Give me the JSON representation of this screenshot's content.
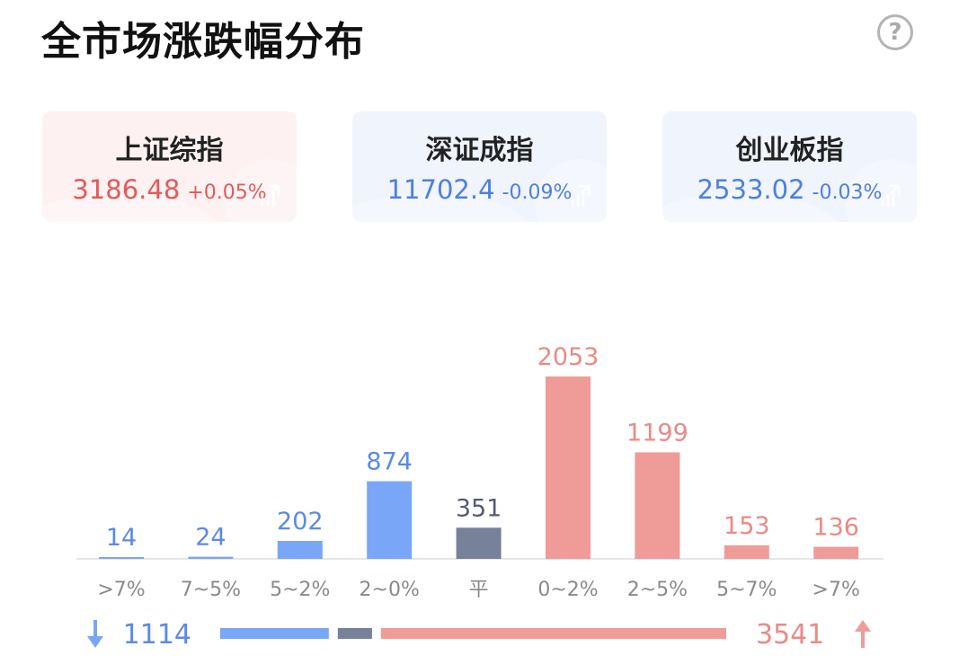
{
  "header": {
    "title": "全市场涨跌幅分布",
    "help_icon": "?"
  },
  "indices": [
    {
      "name": "上证综指",
      "value": "3186.48",
      "change": "+0.05%",
      "color": "#e35a5a"
    },
    {
      "name": "深证成指",
      "value": "11702.4",
      "change": "-0.09%",
      "color": "#4f7fdc"
    },
    {
      "name": "创业板指",
      "value": "2533.02",
      "change": "-0.03%",
      "color": "#4f7fdc"
    }
  ],
  "colors": {
    "down": "#79a6f6",
    "flat": "#77819a",
    "up": "#ef9b97",
    "down_text": "#5b8ae6",
    "up_text": "#ea8a86",
    "flat_text": "#555c70"
  },
  "chart_data": {
    "type": "bar",
    "categories": [
      ">7%",
      "7~5%",
      "5~2%",
      "2~0%",
      "平",
      "0~2%",
      "2~5%",
      "5~7%",
      ">7%"
    ],
    "values": [
      14,
      24,
      202,
      874,
      351,
      2053,
      1199,
      153,
      136
    ],
    "groups": [
      "down",
      "down",
      "down",
      "down",
      "flat",
      "up",
      "up",
      "up",
      "up"
    ],
    "ylim": [
      0,
      2053
    ]
  },
  "summary": {
    "down_count": "1114",
    "up_count": "3541",
    "flat_count": 351
  }
}
